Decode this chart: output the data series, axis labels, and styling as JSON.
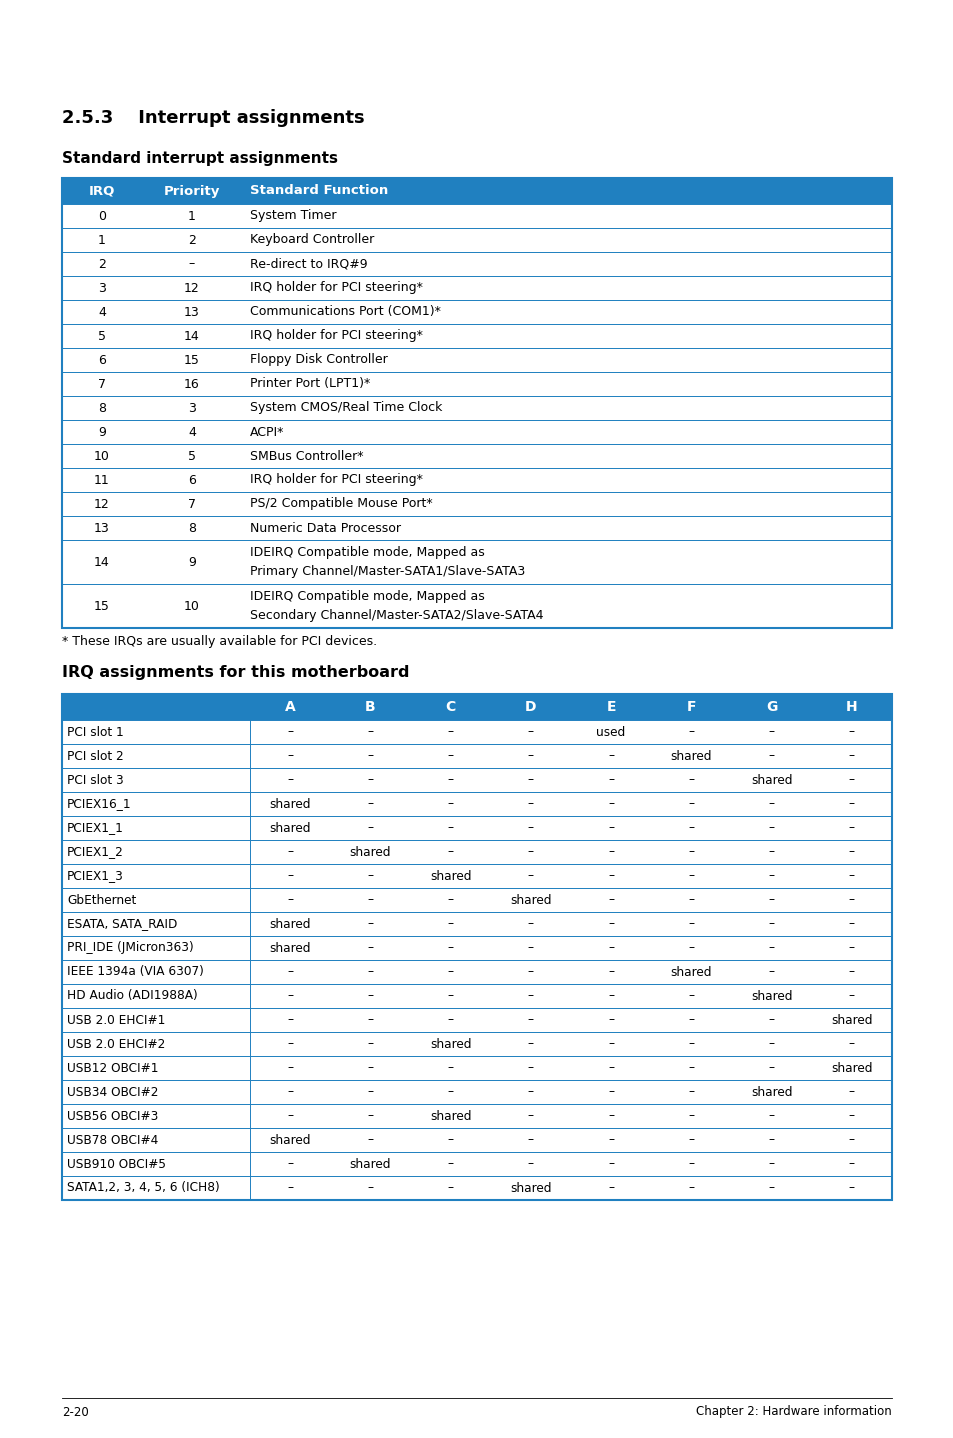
{
  "title_section": "2.5.3    Interrupt assignments",
  "subtitle1": "Standard interrupt assignments",
  "subtitle2": "IRQ assignments for this motherboard",
  "footnote": "* These IRQs are usually available for PCI devices.",
  "footer_left": "2-20",
  "footer_right": "Chapter 2: Hardware information",
  "header_color": "#2080C0",
  "border_color": "#2080C0",
  "std_table_headers": [
    "IRQ",
    "Priority",
    "Standard Function"
  ],
  "std_table_rows": [
    [
      "0",
      "1",
      "System Timer"
    ],
    [
      "1",
      "2",
      "Keyboard Controller"
    ],
    [
      "2",
      "–",
      "Re-direct to IRQ#9"
    ],
    [
      "3",
      "12",
      "IRQ holder for PCI steering*"
    ],
    [
      "4",
      "13",
      "Communications Port (COM1)*"
    ],
    [
      "5",
      "14",
      "IRQ holder for PCI steering*"
    ],
    [
      "6",
      "15",
      "Floppy Disk Controller"
    ],
    [
      "7",
      "16",
      "Printer Port (LPT1)*"
    ],
    [
      "8",
      "3",
      "System CMOS/Real Time Clock"
    ],
    [
      "9",
      "4",
      "ACPI*"
    ],
    [
      "10",
      "5",
      "SMBus Controller*"
    ],
    [
      "11",
      "6",
      "IRQ holder for PCI steering*"
    ],
    [
      "12",
      "7",
      "PS/2 Compatible Mouse Port*"
    ],
    [
      "13",
      "8",
      "Numeric Data Processor"
    ],
    [
      "14",
      "9",
      "IDEIRQ Compatible mode, Mapped as\nPrimary Channel/Master-SATA1/Slave-SATA3"
    ],
    [
      "15",
      "10",
      "IDEIRQ Compatible mode, Mapped as\nSecondary Channel/Master-SATA2/Slave-SATA4"
    ]
  ],
  "irq_table_headers": [
    "",
    "A",
    "B",
    "C",
    "D",
    "E",
    "F",
    "G",
    "H"
  ],
  "irq_table_rows": [
    [
      "PCI slot 1",
      "–",
      "–",
      "–",
      "–",
      "used",
      "–",
      "–",
      "–"
    ],
    [
      "PCI slot 2",
      "–",
      "–",
      "–",
      "–",
      "–",
      "shared",
      "–",
      "–"
    ],
    [
      "PCI slot 3",
      "–",
      "–",
      "–",
      "–",
      "–",
      "–",
      "shared",
      "–"
    ],
    [
      "PCIEX16_1",
      "shared",
      "–",
      "–",
      "–",
      "–",
      "–",
      "–",
      "–"
    ],
    [
      "PCIEX1_1",
      "shared",
      "–",
      "–",
      "–",
      "–",
      "–",
      "–",
      "–"
    ],
    [
      "PCIEX1_2",
      "–",
      "shared",
      "–",
      "–",
      "–",
      "–",
      "–",
      "–"
    ],
    [
      "PCIEX1_3",
      "–",
      "–",
      "shared",
      "–",
      "–",
      "–",
      "–",
      "–"
    ],
    [
      "GbEthernet",
      "–",
      "–",
      "–",
      "shared",
      "–",
      "–",
      "–",
      "–"
    ],
    [
      "ESATA, SATA_RAID",
      "shared",
      "–",
      "–",
      "–",
      "–",
      "–",
      "–",
      "–"
    ],
    [
      "PRI_IDE (JMicron363)",
      "shared",
      "–",
      "–",
      "–",
      "–",
      "–",
      "–",
      "–"
    ],
    [
      "IEEE 1394a (VIA 6307)",
      "–",
      "–",
      "–",
      "–",
      "–",
      "shared",
      "–",
      "–"
    ],
    [
      "HD Audio (ADI1988A)",
      "–",
      "–",
      "–",
      "–",
      "–",
      "–",
      "shared",
      "–"
    ],
    [
      "USB 2.0 EHCI#1",
      "–",
      "–",
      "–",
      "–",
      "–",
      "–",
      "–",
      "shared"
    ],
    [
      "USB 2.0 EHCI#2",
      "–",
      "–",
      "shared",
      "–",
      "–",
      "–",
      "–",
      "–"
    ],
    [
      "USB12 OBCI#1",
      "–",
      "–",
      "–",
      "–",
      "–",
      "–",
      "–",
      "shared"
    ],
    [
      "USB34 OBCI#2",
      "–",
      "–",
      "–",
      "–",
      "–",
      "–",
      "shared",
      "–"
    ],
    [
      "USB56 OBCI#3",
      "–",
      "–",
      "shared",
      "–",
      "–",
      "–",
      "–",
      "–"
    ],
    [
      "USB78 OBCI#4",
      "shared",
      "–",
      "–",
      "–",
      "–",
      "–",
      "–",
      "–"
    ],
    [
      "USB910 OBCI#5",
      "–",
      "shared",
      "–",
      "–",
      "–",
      "–",
      "–",
      "–"
    ],
    [
      "SATA1,2, 3, 4, 5, 6 (ICH8)",
      "–",
      "–",
      "–",
      "shared",
      "–",
      "–",
      "–",
      "–"
    ]
  ]
}
